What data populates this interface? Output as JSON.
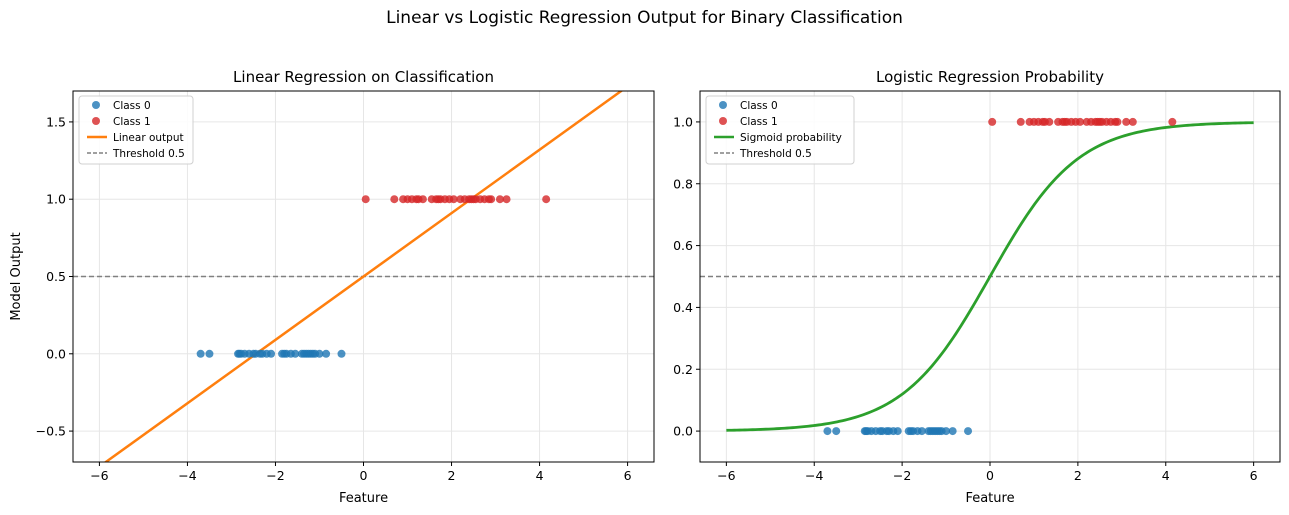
{
  "suptitle": "Linear vs Logistic Regression Output for Binary Classification",
  "colors": {
    "class0": "#1f77b4",
    "class1": "#d62728",
    "linear": "#ff7f0e",
    "sigmoid": "#2ca02c",
    "threshold": "#808080"
  },
  "chart_data": [
    {
      "type": "scatter",
      "title": "Linear Regression on Classification",
      "xlabel": "Feature",
      "ylabel": "Model Output",
      "xlim": [
        -6.6,
        6.6
      ],
      "ylim": [
        -0.7,
        1.7
      ],
      "xticks": [
        -6,
        -4,
        -2,
        0,
        2,
        4,
        6
      ],
      "xtick_labels": [
        "−6",
        "−4",
        "−2",
        "0",
        "2",
        "4",
        "6"
      ],
      "yticks": [
        -0.5,
        0.0,
        0.5,
        1.0,
        1.5
      ],
      "ytick_labels": [
        "−0.5",
        "0.0",
        "0.5",
        "1.0",
        "1.5"
      ],
      "grid": true,
      "legend_position": "top-left",
      "series": [
        {
          "name": "Class 0",
          "kind": "scatter",
          "y": 0,
          "x": [
            -3.7,
            -3.5,
            -2.85,
            -2.82,
            -2.78,
            -2.7,
            -2.6,
            -2.5,
            -2.45,
            -2.35,
            -2.3,
            -2.2,
            -2.1,
            -1.85,
            -1.8,
            -1.75,
            -1.65,
            -1.55,
            -1.4,
            -1.35,
            -1.3,
            -1.25,
            -1.2,
            -1.15,
            -1.1,
            -1.0,
            -0.85,
            -0.5
          ]
        },
        {
          "name": "Class 1",
          "kind": "scatter",
          "y": 1,
          "x": [
            0.05,
            0.7,
            0.9,
            1.0,
            1.1,
            1.2,
            1.25,
            1.35,
            1.55,
            1.65,
            1.7,
            1.75,
            1.85,
            1.95,
            2.05,
            2.2,
            2.3,
            2.4,
            2.45,
            2.5,
            2.55,
            2.65,
            2.75,
            2.85,
            2.9,
            3.1,
            3.25,
            4.15
          ]
        },
        {
          "name": "Linear output",
          "kind": "line",
          "slope": 0.205,
          "intercept": 0.5,
          "x_range": [
            -6,
            6
          ]
        },
        {
          "name": "Threshold 0.5",
          "kind": "hline",
          "y": 0.5
        }
      ]
    },
    {
      "type": "line",
      "title": "Logistic Regression Probability",
      "xlabel": "Feature",
      "ylabel": "",
      "xlim": [
        -6.6,
        6.6
      ],
      "ylim": [
        -0.1,
        1.1
      ],
      "xticks": [
        -6,
        -4,
        -2,
        0,
        2,
        4,
        6
      ],
      "xtick_labels": [
        "−6",
        "−4",
        "−2",
        "0",
        "2",
        "4",
        "6"
      ],
      "yticks": [
        0.0,
        0.2,
        0.4,
        0.6,
        0.8,
        1.0
      ],
      "ytick_labels": [
        "0.0",
        "0.2",
        "0.4",
        "0.6",
        "0.8",
        "1.0"
      ],
      "grid": true,
      "legend_position": "top-left",
      "series": [
        {
          "name": "Class 0",
          "kind": "scatter",
          "y": 0,
          "x": [
            -3.7,
            -3.5,
            -2.85,
            -2.82,
            -2.78,
            -2.7,
            -2.6,
            -2.5,
            -2.45,
            -2.35,
            -2.3,
            -2.2,
            -2.1,
            -1.85,
            -1.8,
            -1.75,
            -1.65,
            -1.55,
            -1.4,
            -1.35,
            -1.3,
            -1.25,
            -1.2,
            -1.15,
            -1.1,
            -1.0,
            -0.85,
            -0.5
          ]
        },
        {
          "name": "Class 1",
          "kind": "scatter",
          "y": 1,
          "x": [
            0.05,
            0.7,
            0.9,
            1.0,
            1.1,
            1.2,
            1.25,
            1.35,
            1.55,
            1.65,
            1.7,
            1.75,
            1.85,
            1.95,
            2.05,
            2.2,
            2.3,
            2.4,
            2.45,
            2.5,
            2.55,
            2.65,
            2.75,
            2.85,
            2.9,
            3.1,
            3.25,
            4.15
          ]
        },
        {
          "name": "Sigmoid probability",
          "kind": "sigmoid",
          "k": 1.0,
          "x0": 0,
          "x_range": [
            -6,
            6
          ]
        },
        {
          "name": "Threshold 0.5",
          "kind": "hline",
          "y": 0.5
        }
      ]
    }
  ]
}
